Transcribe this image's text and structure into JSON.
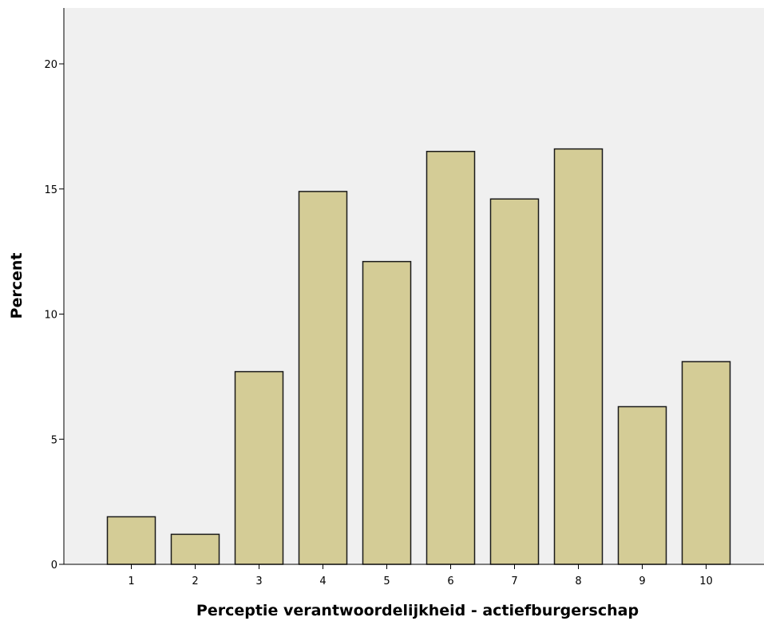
{
  "chart_data": {
    "type": "bar",
    "title": "",
    "xlabel": "Perceptie verantwoordelijkheid - actiefburgerschap",
    "ylabel": "Percent",
    "categories": [
      "1",
      "2",
      "3",
      "4",
      "5",
      "6",
      "7",
      "8",
      "9",
      "10"
    ],
    "values": [
      1.9,
      1.2,
      7.7,
      14.9,
      12.1,
      16.5,
      14.6,
      16.6,
      6.3,
      8.1
    ],
    "ylim": [
      0,
      22
    ],
    "yticks": [
      0,
      5,
      10,
      15,
      20
    ],
    "grid": false,
    "legend": "none",
    "colors": {
      "bar_fill": "#D4CC96",
      "bar_stroke": "#1a1a1a",
      "plot_background": "#F0F0F0"
    }
  }
}
